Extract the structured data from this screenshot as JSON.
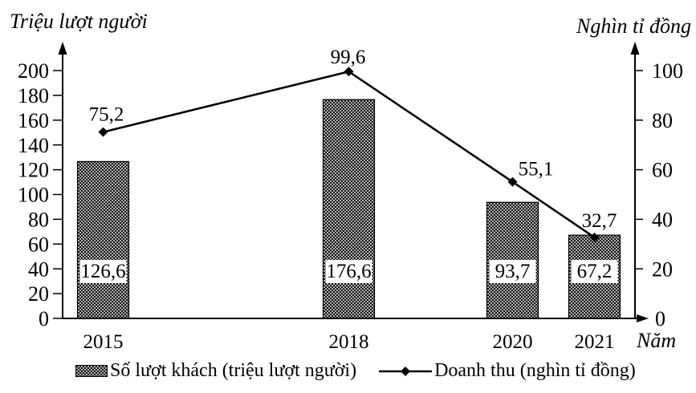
{
  "figure": {
    "left_axis_title": "Triệu lượt người",
    "right_axis_title": "Nghìn tỉ đồng",
    "x_axis_title": "Năm"
  },
  "chart_data": {
    "type": "combo bar+line, dual axis",
    "title": "",
    "categories": [
      2015,
      2018,
      2020,
      2021
    ],
    "x_tick_labels": [
      "2015",
      "2018",
      "2020",
      "2021"
    ],
    "series": [
      {
        "name": "Số lượt khách (triệu lượt người)",
        "type": "bar",
        "axis": "left",
        "values": [
          126.6,
          176.6,
          93.7,
          67.2
        ],
        "value_labels": [
          "126,6",
          "176,6",
          "93,7",
          "67,2"
        ]
      },
      {
        "name": "Doanh thu (nghìn tỉ đồng)",
        "type": "line",
        "axis": "right",
        "values": [
          75.2,
          99.6,
          55.1,
          32.7
        ],
        "value_labels": [
          "75,2",
          "99,6",
          "55,1",
          "32,7"
        ]
      }
    ],
    "left_axis": {
      "title": "Triệu lượt người",
      "range": [
        0,
        200
      ],
      "ticks": [
        0,
        20,
        40,
        60,
        80,
        100,
        120,
        140,
        160,
        180,
        200
      ]
    },
    "right_axis": {
      "title": "Nghìn tỉ đồng",
      "range": [
        0,
        100
      ],
      "ticks": [
        0,
        20,
        40,
        60,
        80,
        100
      ]
    },
    "x_axis": {
      "title": "Năm"
    },
    "legend_position": "bottom",
    "grid": false
  },
  "colors": {
    "ink": "#000000",
    "background": "#ffffff"
  }
}
